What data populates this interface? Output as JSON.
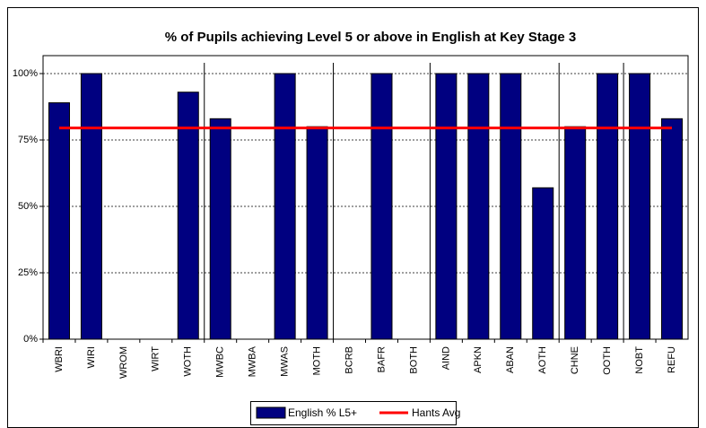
{
  "chart_data": {
    "type": "bar",
    "title": "% of Pupils achieving Level 5 or above in English at Key Stage 3",
    "categories": [
      "WBRI",
      "WIRI",
      "WROM",
      "WIRT",
      "WOTH",
      "MWBC",
      "MWBA",
      "MWAS",
      "MOTH",
      "BCRB",
      "BAFR",
      "BOTH",
      "AIND",
      "APKN",
      "ABAN",
      "AOTH",
      "CHNE",
      "OOTH",
      "NOBT",
      "REFU"
    ],
    "series": [
      {
        "name": "English % L5+",
        "type": "bar",
        "color": "#000080",
        "values": [
          89,
          100,
          null,
          null,
          93,
          83,
          null,
          100,
          80,
          null,
          100,
          null,
          100,
          100,
          100,
          57,
          80,
          100,
          100,
          83
        ]
      },
      {
        "name": "Hants Avg",
        "type": "line",
        "color": "#ff0000",
        "values": [
          79.5,
          79.5,
          79.5,
          79.5,
          79.5,
          79.5,
          79.5,
          79.5,
          79.5,
          79.5,
          79.5,
          79.5,
          79.5,
          79.5,
          79.5,
          79.5,
          79.5,
          79.5,
          79.5,
          79.5
        ]
      }
    ],
    "ylim": [
      0,
      100
    ],
    "yticks": [
      {
        "value": 0,
        "label": "0%"
      },
      {
        "value": 25,
        "label": "25%"
      },
      {
        "value": 50,
        "label": "50%"
      },
      {
        "value": 75,
        "label": "75%"
      },
      {
        "value": 100,
        "label": "100%"
      }
    ],
    "grid": true,
    "legend": "bottom"
  }
}
